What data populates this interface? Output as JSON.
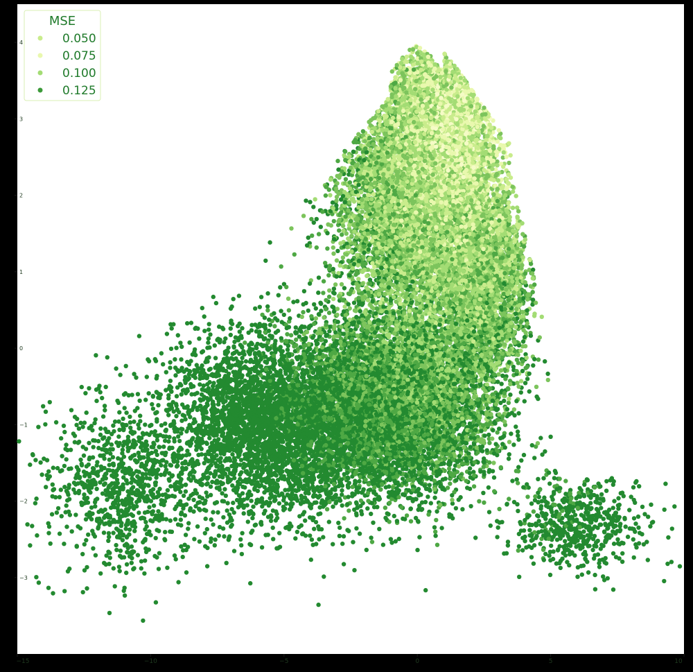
{
  "chart_data": {
    "type": "scatter",
    "title": "",
    "xlabel": "",
    "ylabel": "",
    "xlim": [
      -15,
      10
    ],
    "ylim": [
      -4,
      4.5
    ],
    "x_ticks": [
      -15,
      -10,
      -5,
      0,
      5,
      10
    ],
    "x_tick_labels": [
      "−15",
      "−10",
      "−5",
      "0",
      "5",
      "10"
    ],
    "y_ticks": [
      -3,
      -2,
      -1,
      0,
      1,
      2,
      3,
      4
    ],
    "y_tick_labels": [
      "−3",
      "−2",
      "−1",
      "0",
      "1",
      "2",
      "3",
      "4"
    ],
    "grid": false,
    "legend": {
      "title": "MSE",
      "placement": "top-left",
      "entries": [
        {
          "label": "0.050",
          "color": "#c9ec8c"
        },
        {
          "label": "0.075",
          "color": "#e9f8ae"
        },
        {
          "label": "0.100",
          "color": "#a3dc74"
        },
        {
          "label": "0.125",
          "color": "#3c9a3a"
        }
      ]
    },
    "colormap": [
      "#f5fbc6",
      "#e9f8ae",
      "#c9ec8c",
      "#a3dc74",
      "#7cc45c",
      "#4ea844",
      "#238a30"
    ],
    "colors": {
      "background": "#ffffff",
      "figure": "#000000",
      "legend_text": "#1f7a2a"
    },
    "note_points": "approximately 28000 points forming a blob with peak near (0, 4.1), shoulder to (5, 0.9) and a diffuse tail toward the left and lower right; points further from the upper core tend toward higher MSE (darker green)",
    "series": [
      {
        "kind": "cloud",
        "description": "dense main cluster",
        "regions": [
          {
            "center": [
              0.2,
              1.9
            ],
            "spread": [
              2.4,
              1.2
            ],
            "count": 9000
          },
          {
            "center": [
              0.8,
              3.2
            ],
            "spread": [
              1.6,
              0.6
            ],
            "count": 4000
          },
          {
            "center": [
              -0.8,
              -0.7
            ],
            "spread": [
              3.0,
              1.0
            ],
            "count": 7000
          },
          {
            "center": [
              2.5,
              0.8
            ],
            "spread": [
              1.4,
              1.1
            ],
            "count": 3000
          },
          {
            "center": [
              -5.5,
              -1.0
            ],
            "spread": [
              3.2,
              1.1
            ],
            "count": 3500
          },
          {
            "center": [
              6.0,
              -2.3
            ],
            "spread": [
              2.0,
              0.5
            ],
            "count": 600
          },
          {
            "center": [
              -11.0,
              -1.8
            ],
            "spread": [
              2.5,
              1.0
            ],
            "count": 900
          }
        ]
      }
    ]
  }
}
